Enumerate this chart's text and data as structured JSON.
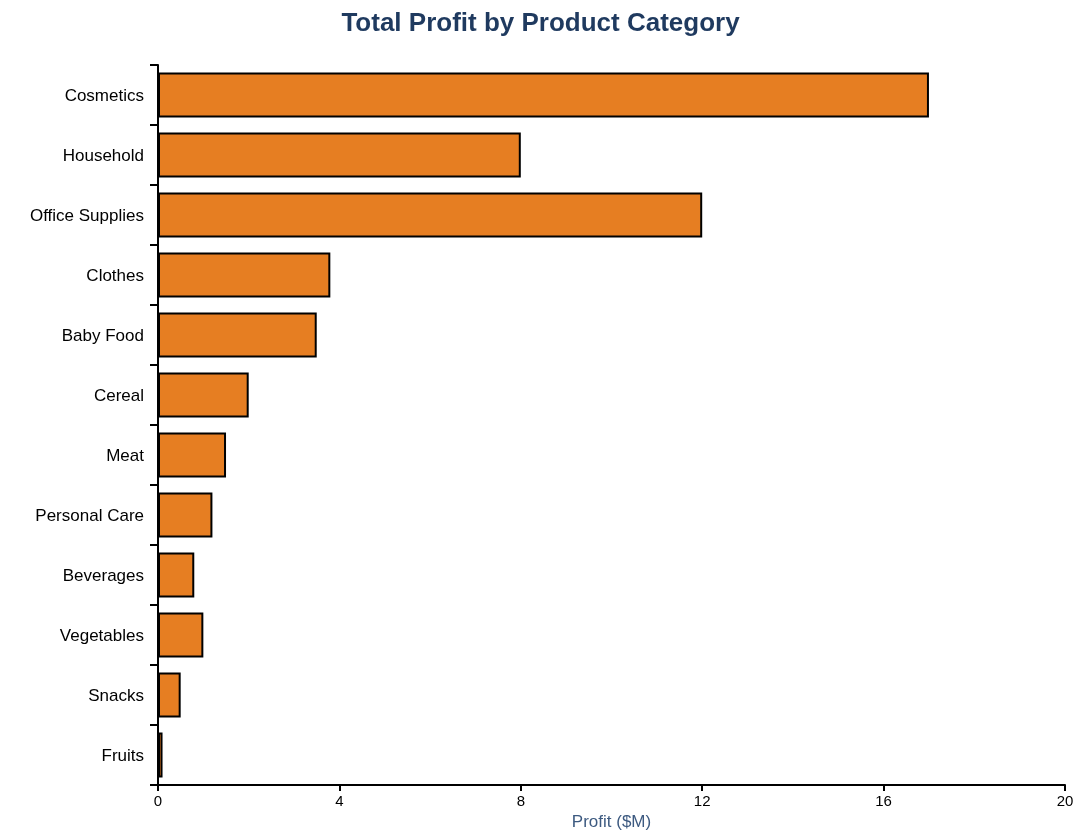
{
  "chart_data": {
    "type": "bar",
    "orientation": "horizontal",
    "title": "Total Profit by Product Category",
    "xlabel": "Profit ($M)",
    "categories": [
      "Cosmetics",
      "Household",
      "Office Supplies",
      "Clothes",
      "Baby Food",
      "Cereal",
      "Meat",
      "Personal Care",
      "Beverages",
      "Vegetables",
      "Snacks",
      "Fruits"
    ],
    "values": [
      17.0,
      8.0,
      12.0,
      3.8,
      3.5,
      2.0,
      1.5,
      1.2,
      0.8,
      1.0,
      0.5,
      0.1
    ],
    "color": "#e67e22",
    "xlim": [
      0,
      20
    ],
    "xticks": [
      0,
      4,
      8,
      12,
      16,
      20
    ],
    "grid": false
  }
}
